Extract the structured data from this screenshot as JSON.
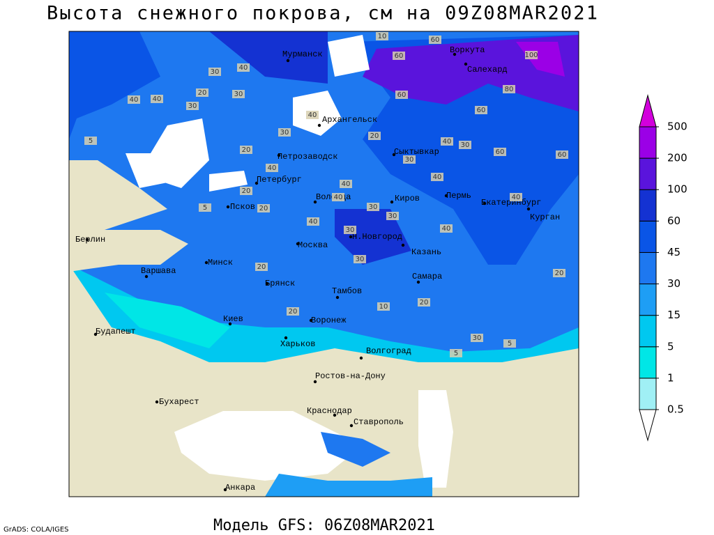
{
  "header": {
    "title": "Высота снежного покрова, см на 09Z08MAR2021"
  },
  "footer": {
    "model": "Модель GFS: 06Z08MAR2021",
    "credit": "GrADS: COLA/IGES"
  },
  "cities": [
    "Мурманск",
    "Воркута",
    "Салехард",
    "Архангельск",
    "Петрозаводск",
    "Сыктывкар",
    "Петербург",
    "Псков",
    "Вологда",
    "Киров",
    "Пермь",
    "Екатеринбург",
    "Курган",
    "Берлин",
    "Москва",
    "Н.Новгород",
    "Казань",
    "Варшава",
    "Минск",
    "Брянск",
    "Тамбов",
    "Самара",
    "Киев",
    "Воронеж",
    "Будапешт",
    "Харьков",
    "Волгоград",
    "Ростов-на-Дону",
    "Бухарест",
    "Краснодар",
    "Ставрополь",
    "Анкара"
  ],
  "contour_labels": [
    10,
    60,
    60,
    100,
    40,
    30,
    80,
    40,
    20,
    30,
    30,
    40,
    60,
    40,
    30,
    20,
    5,
    60,
    40,
    30,
    20,
    30,
    40,
    40,
    60,
    60,
    40,
    30,
    20,
    40,
    40,
    20,
    30,
    40,
    40,
    30,
    20,
    30,
    20,
    10,
    5,
    5,
    5,
    20,
    30,
    20
  ],
  "colorbar": {
    "levels": [
      0.5,
      1,
      5,
      15,
      30,
      45,
      60,
      100,
      200,
      500
    ],
    "colors": [
      "#ffffff",
      "#a0f0f5",
      "#00e6e6",
      "#00c8f0",
      "#1e9ef5",
      "#1e78f0",
      "#0a55e6",
      "#1432d2",
      "#5a14dc",
      "#9b00e6",
      "#d200dc"
    ]
  }
}
